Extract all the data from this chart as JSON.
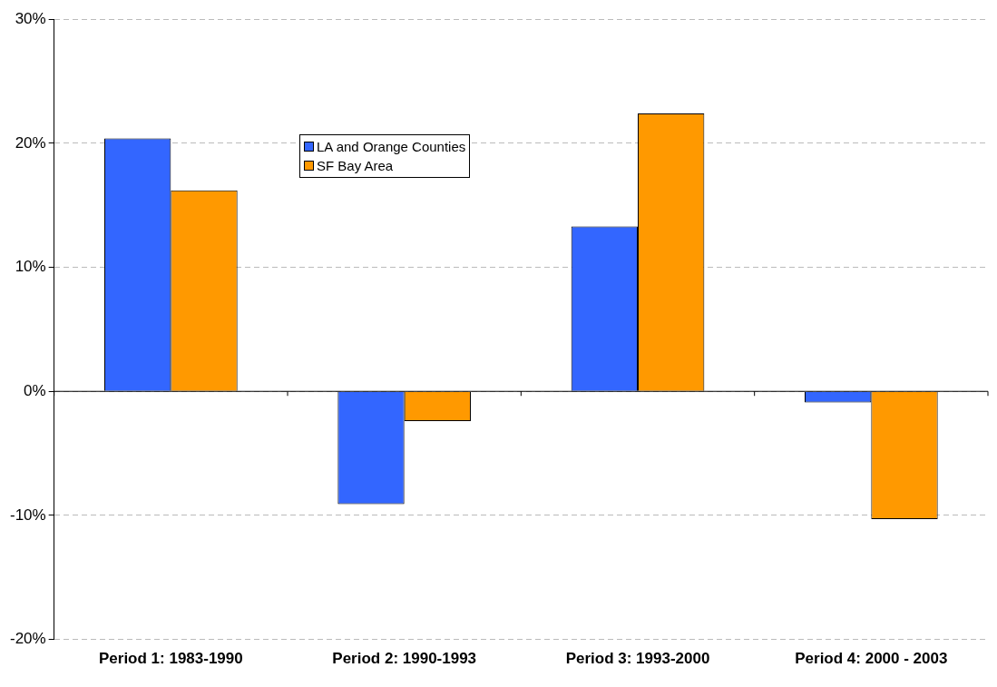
{
  "chart_data": {
    "type": "bar",
    "categories": [
      "Period 1: 1983-1990",
      "Period 2: 1990-1993",
      "Period 3: 1993-2000",
      "Period 4: 2000 - 2003"
    ],
    "series": [
      {
        "name": "LA and Orange Counties",
        "color": "#3366ff",
        "values": [
          20.4,
          -9.1,
          13.3,
          -0.9
        ]
      },
      {
        "name": "SF Bay Area",
        "color": "#ff9900",
        "values": [
          16.2,
          -2.4,
          22.4,
          -10.3
        ]
      }
    ],
    "ylim": [
      -20,
      30
    ],
    "yticks": [
      {
        "value": -20,
        "label": "-20%"
      },
      {
        "value": -10,
        "label": "-10%"
      },
      {
        "value": 0,
        "label": "0%"
      },
      {
        "value": 10,
        "label": "10%"
      },
      {
        "value": 20,
        "label": "20%"
      },
      {
        "value": 30,
        "label": "30%"
      }
    ],
    "grid": "y",
    "legend": "top left"
  }
}
